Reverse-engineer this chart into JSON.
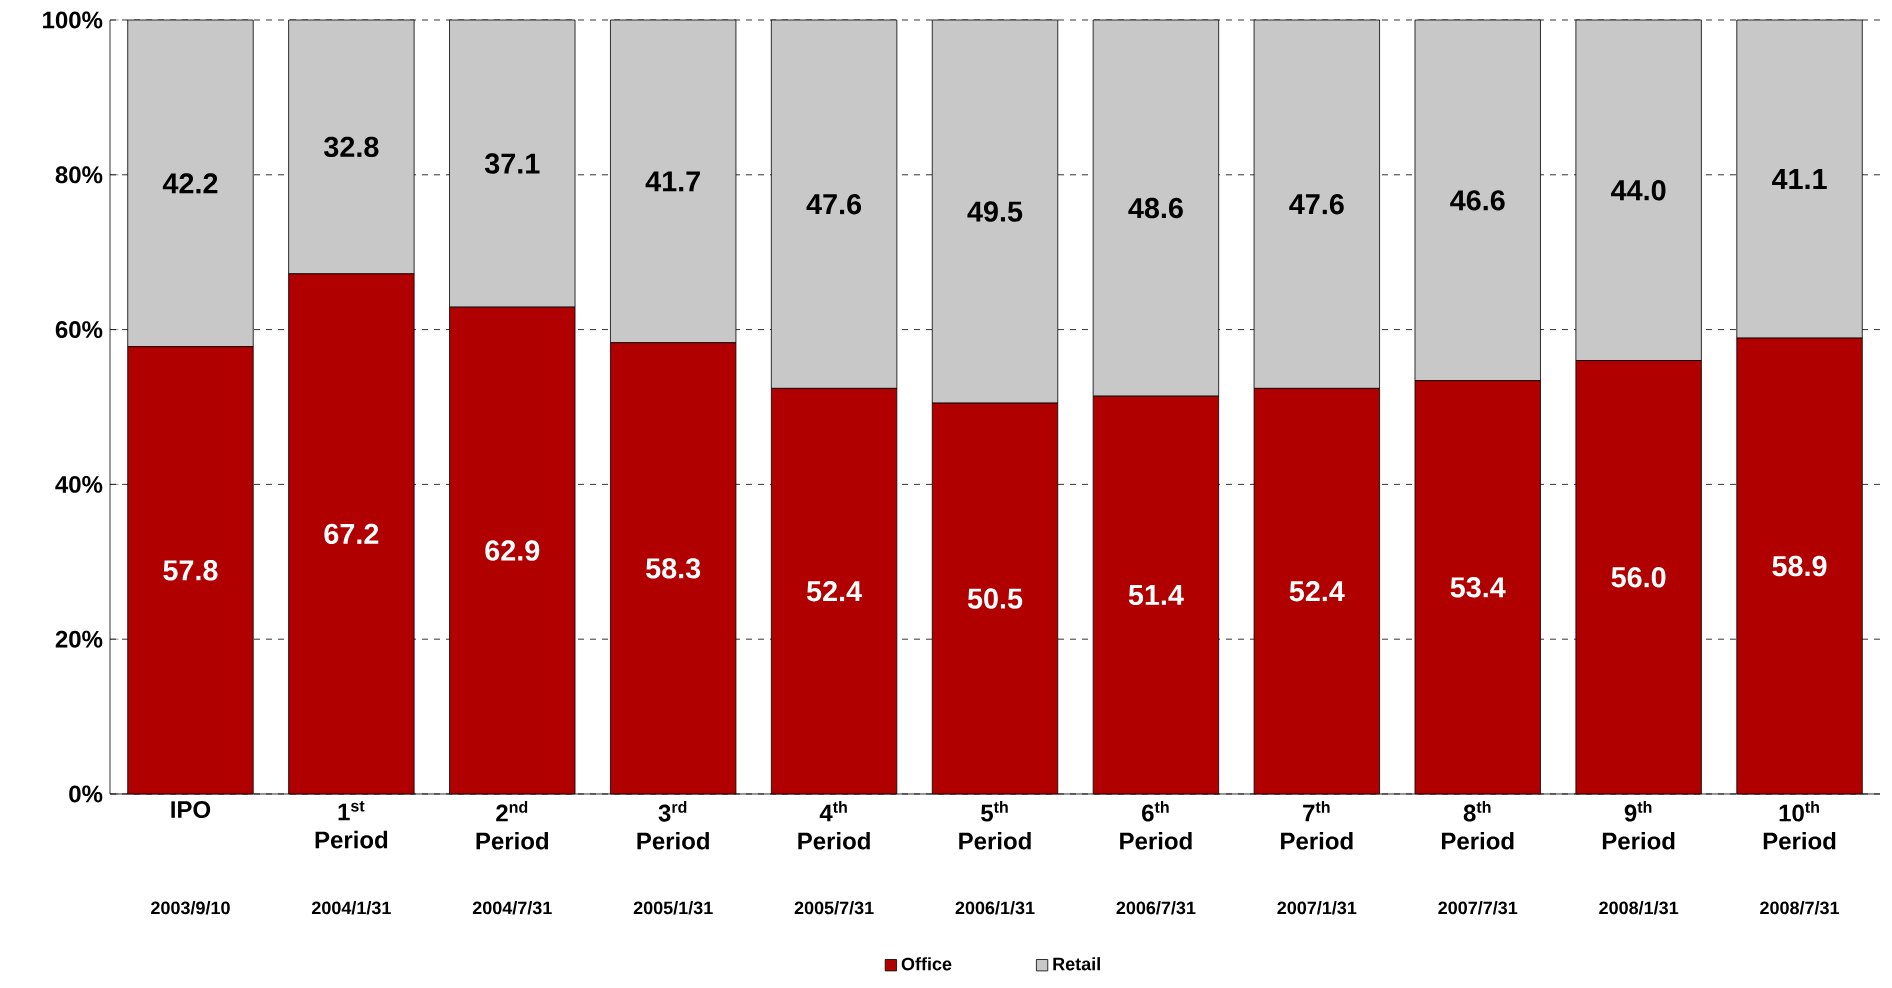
{
  "chart_data": {
    "type": "bar",
    "stacked": true,
    "grid": "y",
    "legend": "bottom",
    "categories": [
      "IPO",
      "1$^{st}$ Period",
      "2$^{nd}$ Period",
      "3$^{rd}$ Period",
      "4$^{th}$ Period",
      "5$^{th}$ Period",
      "6$^{th}$ Period",
      "7$^{th}$ Period",
      "8$^{th}$ Period",
      "9$^{th}$ Period",
      "10$^{th}$ Period"
    ],
    "series": [
      {
        "name": "Office",
        "color": "#b00000",
        "values": [
          57.8,
          67.2,
          62.9,
          58.3,
          52.4,
          50.5,
          51.4,
          52.4,
          53.4,
          56.0,
          58.9
        ],
        "value_labels": [
          "57.8",
          "67.2",
          "62.9",
          "58.3",
          "52.4",
          "50.5",
          "51.4",
          "52.4",
          "53.4",
          "56.0",
          "58.9"
        ]
      },
      {
        "name": "Retail",
        "color": "#c8c8c8",
        "values": [
          42.2,
          32.8,
          37.1,
          41.7,
          47.6,
          49.5,
          48.6,
          47.6,
          46.6,
          44.0,
          41.1
        ],
        "value_labels": [
          "42.2",
          "32.8",
          "37.1",
          "41.7",
          "47.6",
          "49.5",
          "48.6",
          "47.6",
          "46.6",
          "44.0",
          "41.1"
        ]
      }
    ],
    "ylim": [
      0,
      100
    ],
    "yticks": [
      {
        "value": 0,
        "label": "0%"
      },
      {
        "value": 20,
        "label": "20%"
      },
      {
        "value": 40,
        "label": "40%"
      },
      {
        "value": 60,
        "label": "60%"
      },
      {
        "value": 80,
        "label": "80%"
      },
      {
        "value": 100,
        "label": "100%"
      }
    ],
    "annotations": [
      "2003/9/10",
      "2004/1/31",
      "2004/7/31",
      "2005/1/31",
      "2005/7/31",
      "2006/1/31",
      "2006/7/31",
      "2007/1/31",
      "2007/7/31",
      "2008/1/31",
      "2008/7/31"
    ]
  }
}
